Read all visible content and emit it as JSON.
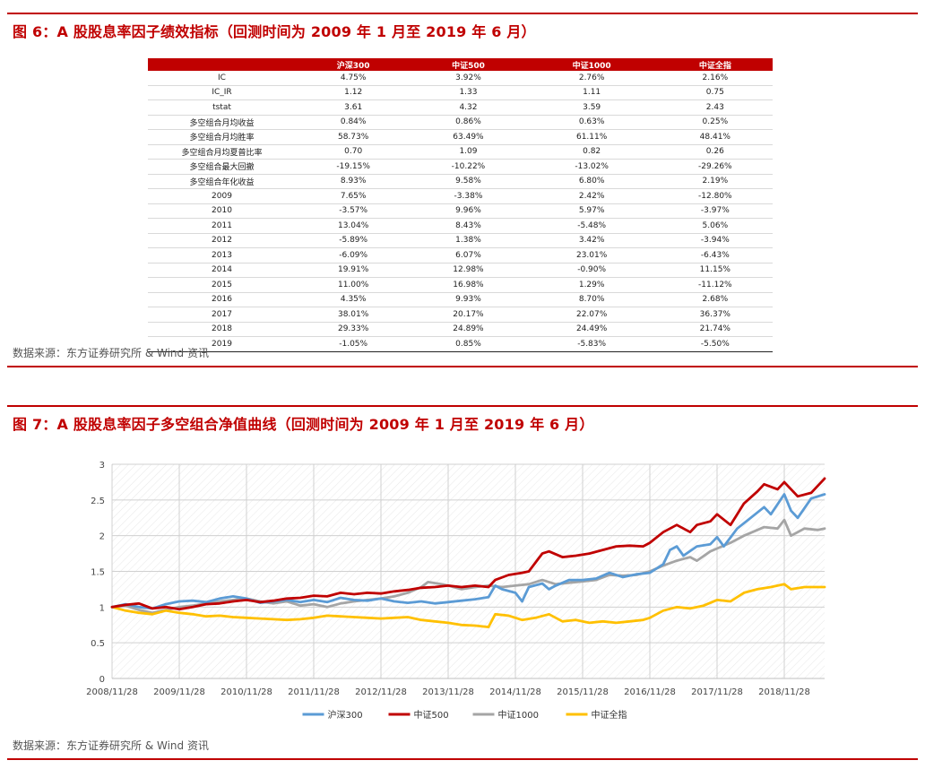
{
  "figure6": {
    "title": "图 6：A 股股息率因子绩效指标（回测时间为 2009 年 1 月至 2019 年 6 月）",
    "source": "数据来源：东方证券研究所 & Wind 资讯",
    "table": {
      "headers": [
        "",
        "沪深300",
        "中证500",
        "中证1000",
        "中证全指"
      ],
      "rows": [
        [
          "IC",
          "4.75%",
          "3.92%",
          "2.76%",
          "2.16%"
        ],
        [
          "IC_IR",
          "1.12",
          "1.33",
          "1.11",
          "0.75"
        ],
        [
          "tstat",
          "3.61",
          "4.32",
          "3.59",
          "2.43"
        ],
        [
          "多空组合月均收益",
          "0.84%",
          "0.86%",
          "0.63%",
          "0.25%"
        ],
        [
          "多空组合月均胜率",
          "58.73%",
          "63.49%",
          "61.11%",
          "48.41%"
        ],
        [
          "多空组合月均夏普比率",
          "0.70",
          "1.09",
          "0.82",
          "0.26"
        ],
        [
          "多空组合最大回撤",
          "-19.15%",
          "-10.22%",
          "-13.02%",
          "-29.26%"
        ],
        [
          "多空组合年化收益",
          "8.93%",
          "9.58%",
          "6.80%",
          "2.19%"
        ],
        [
          "2009",
          "7.65%",
          "-3.38%",
          "2.42%",
          "-12.80%"
        ],
        [
          "2010",
          "-3.57%",
          "9.96%",
          "5.97%",
          "-3.97%"
        ],
        [
          "2011",
          "13.04%",
          "8.43%",
          "-5.48%",
          "5.06%"
        ],
        [
          "2012",
          "-5.89%",
          "1.38%",
          "3.42%",
          "-3.94%"
        ],
        [
          "2013",
          "-6.09%",
          "6.07%",
          "23.01%",
          "-6.43%"
        ],
        [
          "2014",
          "19.91%",
          "12.98%",
          "-0.90%",
          "11.15%"
        ],
        [
          "2015",
          "11.00%",
          "16.98%",
          "1.29%",
          "-11.12%"
        ],
        [
          "2016",
          "4.35%",
          "9.93%",
          "8.70%",
          "2.68%"
        ],
        [
          "2017",
          "38.01%",
          "20.17%",
          "22.07%",
          "36.37%"
        ],
        [
          "2018",
          "29.33%",
          "24.89%",
          "24.49%",
          "21.74%"
        ],
        [
          "2019",
          "-1.05%",
          "0.85%",
          "-5.83%",
          "-5.50%"
        ]
      ]
    }
  },
  "figure7": {
    "title": "图 7：A 股股息率因子多空组合净值曲线（回测时间为 2009 年 1 月至 2019 年 6 月）",
    "source": "数据来源：东方证券研究所 & Wind 资讯"
  },
  "chart_data": {
    "type": "line",
    "title": "",
    "xlabel": "",
    "ylabel": "",
    "ylim": [
      0,
      3
    ],
    "yticks": [
      "0",
      "0.5",
      "1",
      "1.5",
      "2",
      "2.5",
      "3"
    ],
    "xlim": [
      2008.9,
      2019.5
    ],
    "xticks": [
      {
        "x": 2008.9,
        "label": "2008/11/28"
      },
      {
        "x": 2009.9,
        "label": "2009/11/28"
      },
      {
        "x": 2010.9,
        "label": "2010/11/28"
      },
      {
        "x": 2011.9,
        "label": "2011/11/28"
      },
      {
        "x": 2012.9,
        "label": "2012/11/28"
      },
      {
        "x": 2013.9,
        "label": "2013/11/28"
      },
      {
        "x": 2014.9,
        "label": "2014/11/28"
      },
      {
        "x": 2015.9,
        "label": "2015/11/28"
      },
      {
        "x": 2016.9,
        "label": "2016/11/28"
      },
      {
        "x": 2017.9,
        "label": "2017/11/28"
      },
      {
        "x": 2018.9,
        "label": "2018/11/28"
      }
    ],
    "grid": true,
    "legend": "bottom",
    "series": [
      {
        "name": "沪深300",
        "color": "#5b9bd5",
        "points": [
          [
            2008.9,
            1.0
          ],
          [
            2009.1,
            1.04
          ],
          [
            2009.3,
            1.0
          ],
          [
            2009.5,
            0.98
          ],
          [
            2009.7,
            1.04
          ],
          [
            2009.9,
            1.08
          ],
          [
            2010.1,
            1.09
          ],
          [
            2010.3,
            1.07
          ],
          [
            2010.5,
            1.12
          ],
          [
            2010.7,
            1.15
          ],
          [
            2010.9,
            1.12
          ],
          [
            2011.1,
            1.06
          ],
          [
            2011.3,
            1.08
          ],
          [
            2011.5,
            1.1
          ],
          [
            2011.7,
            1.07
          ],
          [
            2011.9,
            1.1
          ],
          [
            2012.1,
            1.07
          ],
          [
            2012.3,
            1.13
          ],
          [
            2012.5,
            1.1
          ],
          [
            2012.7,
            1.09
          ],
          [
            2012.9,
            1.12
          ],
          [
            2013.1,
            1.08
          ],
          [
            2013.3,
            1.06
          ],
          [
            2013.5,
            1.08
          ],
          [
            2013.7,
            1.05
          ],
          [
            2013.9,
            1.07
          ],
          [
            2014.1,
            1.09
          ],
          [
            2014.3,
            1.11
          ],
          [
            2014.5,
            1.14
          ],
          [
            2014.6,
            1.3
          ],
          [
            2014.7,
            1.25
          ],
          [
            2014.9,
            1.2
          ],
          [
            2015.0,
            1.08
          ],
          [
            2015.1,
            1.28
          ],
          [
            2015.3,
            1.33
          ],
          [
            2015.4,
            1.25
          ],
          [
            2015.5,
            1.3
          ],
          [
            2015.7,
            1.38
          ],
          [
            2015.9,
            1.38
          ],
          [
            2016.1,
            1.4
          ],
          [
            2016.3,
            1.48
          ],
          [
            2016.5,
            1.42
          ],
          [
            2016.7,
            1.46
          ],
          [
            2016.9,
            1.48
          ],
          [
            2017.1,
            1.6
          ],
          [
            2017.2,
            1.8
          ],
          [
            2017.3,
            1.85
          ],
          [
            2017.4,
            1.72
          ],
          [
            2017.6,
            1.85
          ],
          [
            2017.8,
            1.88
          ],
          [
            2017.9,
            1.98
          ],
          [
            2018.0,
            1.85
          ],
          [
            2018.2,
            2.1
          ],
          [
            2018.4,
            2.25
          ],
          [
            2018.6,
            2.4
          ],
          [
            2018.7,
            2.3
          ],
          [
            2018.9,
            2.58
          ],
          [
            2019.0,
            2.35
          ],
          [
            2019.1,
            2.25
          ],
          [
            2019.3,
            2.52
          ],
          [
            2019.5,
            2.58
          ]
        ]
      },
      {
        "name": "中证500",
        "color": "#c00000",
        "points": [
          [
            2008.9,
            1.0
          ],
          [
            2009.1,
            1.03
          ],
          [
            2009.3,
            1.05
          ],
          [
            2009.5,
            0.98
          ],
          [
            2009.7,
            1.0
          ],
          [
            2009.9,
            0.97
          ],
          [
            2010.1,
            1.0
          ],
          [
            2010.3,
            1.04
          ],
          [
            2010.5,
            1.05
          ],
          [
            2010.7,
            1.08
          ],
          [
            2010.9,
            1.1
          ],
          [
            2011.1,
            1.07
          ],
          [
            2011.3,
            1.09
          ],
          [
            2011.5,
            1.12
          ],
          [
            2011.7,
            1.13
          ],
          [
            2011.9,
            1.16
          ],
          [
            2012.1,
            1.15
          ],
          [
            2012.3,
            1.2
          ],
          [
            2012.5,
            1.18
          ],
          [
            2012.7,
            1.2
          ],
          [
            2012.9,
            1.19
          ],
          [
            2013.1,
            1.22
          ],
          [
            2013.3,
            1.24
          ],
          [
            2013.5,
            1.27
          ],
          [
            2013.7,
            1.28
          ],
          [
            2013.9,
            1.3
          ],
          [
            2014.1,
            1.28
          ],
          [
            2014.3,
            1.3
          ],
          [
            2014.5,
            1.28
          ],
          [
            2014.6,
            1.38
          ],
          [
            2014.8,
            1.45
          ],
          [
            2015.0,
            1.48
          ],
          [
            2015.1,
            1.5
          ],
          [
            2015.3,
            1.75
          ],
          [
            2015.4,
            1.78
          ],
          [
            2015.6,
            1.7
          ],
          [
            2015.8,
            1.72
          ],
          [
            2016.0,
            1.75
          ],
          [
            2016.2,
            1.8
          ],
          [
            2016.4,
            1.85
          ],
          [
            2016.6,
            1.86
          ],
          [
            2016.8,
            1.85
          ],
          [
            2016.9,
            1.9
          ],
          [
            2017.1,
            2.05
          ],
          [
            2017.3,
            2.15
          ],
          [
            2017.5,
            2.05
          ],
          [
            2017.6,
            2.15
          ],
          [
            2017.8,
            2.2
          ],
          [
            2017.9,
            2.3
          ],
          [
            2018.1,
            2.15
          ],
          [
            2018.3,
            2.45
          ],
          [
            2018.5,
            2.62
          ],
          [
            2018.6,
            2.72
          ],
          [
            2018.8,
            2.65
          ],
          [
            2018.9,
            2.75
          ],
          [
            2019.1,
            2.55
          ],
          [
            2019.3,
            2.6
          ],
          [
            2019.5,
            2.8
          ]
        ]
      },
      {
        "name": "中证1000",
        "color": "#a5a5a5",
        "points": [
          [
            2008.9,
            1.0
          ],
          [
            2009.1,
            1.02
          ],
          [
            2009.3,
            0.96
          ],
          [
            2009.5,
            0.92
          ],
          [
            2009.7,
            0.96
          ],
          [
            2009.9,
            1.0
          ],
          [
            2010.1,
            1.02
          ],
          [
            2010.3,
            1.05
          ],
          [
            2010.5,
            1.08
          ],
          [
            2010.7,
            1.1
          ],
          [
            2010.9,
            1.12
          ],
          [
            2011.1,
            1.08
          ],
          [
            2011.3,
            1.05
          ],
          [
            2011.5,
            1.08
          ],
          [
            2011.7,
            1.02
          ],
          [
            2011.9,
            1.04
          ],
          [
            2012.1,
            1.0
          ],
          [
            2012.3,
            1.05
          ],
          [
            2012.5,
            1.08
          ],
          [
            2012.7,
            1.1
          ],
          [
            2012.9,
            1.12
          ],
          [
            2013.1,
            1.15
          ],
          [
            2013.3,
            1.2
          ],
          [
            2013.5,
            1.28
          ],
          [
            2013.6,
            1.35
          ],
          [
            2013.8,
            1.32
          ],
          [
            2013.9,
            1.3
          ],
          [
            2014.1,
            1.25
          ],
          [
            2014.3,
            1.28
          ],
          [
            2014.5,
            1.3
          ],
          [
            2014.7,
            1.28
          ],
          [
            2014.9,
            1.3
          ],
          [
            2015.1,
            1.32
          ],
          [
            2015.3,
            1.38
          ],
          [
            2015.5,
            1.32
          ],
          [
            2015.7,
            1.34
          ],
          [
            2015.9,
            1.36
          ],
          [
            2016.1,
            1.38
          ],
          [
            2016.3,
            1.45
          ],
          [
            2016.5,
            1.44
          ],
          [
            2016.7,
            1.45
          ],
          [
            2016.9,
            1.5
          ],
          [
            2017.1,
            1.58
          ],
          [
            2017.3,
            1.65
          ],
          [
            2017.5,
            1.7
          ],
          [
            2017.6,
            1.65
          ],
          [
            2017.8,
            1.78
          ],
          [
            2017.9,
            1.82
          ],
          [
            2018.1,
            1.9
          ],
          [
            2018.3,
            2.0
          ],
          [
            2018.5,
            2.08
          ],
          [
            2018.6,
            2.12
          ],
          [
            2018.8,
            2.1
          ],
          [
            2018.9,
            2.22
          ],
          [
            2019.0,
            2.0
          ],
          [
            2019.2,
            2.1
          ],
          [
            2019.4,
            2.08
          ],
          [
            2019.5,
            2.1
          ]
        ]
      },
      {
        "name": "中证全指",
        "color": "#ffc000",
        "points": [
          [
            2008.9,
            1.0
          ],
          [
            2009.1,
            0.95
          ],
          [
            2009.3,
            0.92
          ],
          [
            2009.5,
            0.9
          ],
          [
            2009.7,
            0.95
          ],
          [
            2009.9,
            0.92
          ],
          [
            2010.1,
            0.9
          ],
          [
            2010.3,
            0.87
          ],
          [
            2010.5,
            0.88
          ],
          [
            2010.7,
            0.86
          ],
          [
            2010.9,
            0.85
          ],
          [
            2011.1,
            0.84
          ],
          [
            2011.3,
            0.83
          ],
          [
            2011.5,
            0.82
          ],
          [
            2011.7,
            0.83
          ],
          [
            2011.9,
            0.85
          ],
          [
            2012.1,
            0.88
          ],
          [
            2012.3,
            0.87
          ],
          [
            2012.5,
            0.86
          ],
          [
            2012.7,
            0.85
          ],
          [
            2012.9,
            0.84
          ],
          [
            2013.1,
            0.85
          ],
          [
            2013.3,
            0.86
          ],
          [
            2013.5,
            0.82
          ],
          [
            2013.7,
            0.8
          ],
          [
            2013.9,
            0.78
          ],
          [
            2014.1,
            0.75
          ],
          [
            2014.3,
            0.74
          ],
          [
            2014.5,
            0.72
          ],
          [
            2014.6,
            0.9
          ],
          [
            2014.8,
            0.88
          ],
          [
            2015.0,
            0.82
          ],
          [
            2015.2,
            0.85
          ],
          [
            2015.4,
            0.9
          ],
          [
            2015.6,
            0.8
          ],
          [
            2015.8,
            0.82
          ],
          [
            2016.0,
            0.78
          ],
          [
            2016.2,
            0.8
          ],
          [
            2016.4,
            0.78
          ],
          [
            2016.6,
            0.8
          ],
          [
            2016.8,
            0.82
          ],
          [
            2016.9,
            0.85
          ],
          [
            2017.1,
            0.95
          ],
          [
            2017.3,
            1.0
          ],
          [
            2017.5,
            0.98
          ],
          [
            2017.7,
            1.02
          ],
          [
            2017.9,
            1.1
          ],
          [
            2018.1,
            1.08
          ],
          [
            2018.3,
            1.2
          ],
          [
            2018.5,
            1.25
          ],
          [
            2018.7,
            1.28
          ],
          [
            2018.9,
            1.32
          ],
          [
            2019.0,
            1.25
          ],
          [
            2019.2,
            1.28
          ],
          [
            2019.5,
            1.28
          ]
        ]
      }
    ]
  }
}
